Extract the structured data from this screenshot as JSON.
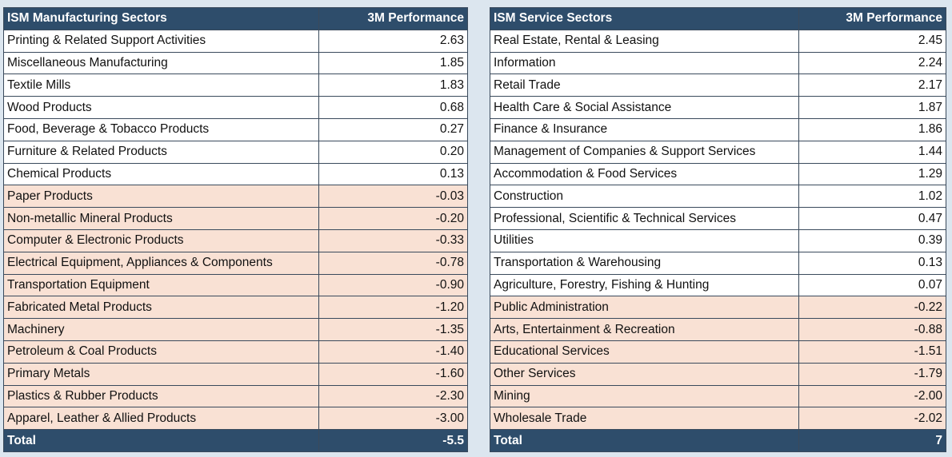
{
  "manufacturing": {
    "header": {
      "sector": "ISM Manufacturing Sectors",
      "performance": "3M Performance"
    },
    "rows": [
      {
        "name": "Printing & Related Support Activities",
        "value": "2.63",
        "sign": "pos"
      },
      {
        "name": "Miscellaneous Manufacturing",
        "value": "1.85",
        "sign": "pos"
      },
      {
        "name": "Textile Mills",
        "value": "1.83",
        "sign": "pos"
      },
      {
        "name": "Wood Products",
        "value": "0.68",
        "sign": "pos"
      },
      {
        "name": "Food, Beverage & Tobacco Products",
        "value": "0.27",
        "sign": "pos"
      },
      {
        "name": "Furniture & Related Products",
        "value": "0.20",
        "sign": "pos"
      },
      {
        "name": "Chemical Products",
        "value": "0.13",
        "sign": "pos"
      },
      {
        "name": "Paper Products",
        "value": "-0.03",
        "sign": "neg"
      },
      {
        "name": "Non-metallic Mineral Products",
        "value": "-0.20",
        "sign": "neg"
      },
      {
        "name": "Computer & Electronic Products",
        "value": "-0.33",
        "sign": "neg"
      },
      {
        "name": "Electrical Equipment, Appliances & Components",
        "value": "-0.78",
        "sign": "neg"
      },
      {
        "name": "Transportation Equipment",
        "value": "-0.90",
        "sign": "neg"
      },
      {
        "name": "Fabricated Metal Products",
        "value": "-1.20",
        "sign": "neg"
      },
      {
        "name": "Machinery",
        "value": "-1.35",
        "sign": "neg"
      },
      {
        "name": "Petroleum & Coal Products",
        "value": "-1.40",
        "sign": "neg"
      },
      {
        "name": "Primary Metals",
        "value": "-1.60",
        "sign": "neg"
      },
      {
        "name": "Plastics & Rubber Products",
        "value": "-2.30",
        "sign": "neg"
      },
      {
        "name": "Apparel, Leather & Allied Products",
        "value": "-3.00",
        "sign": "neg"
      }
    ],
    "total": {
      "label": "Total",
      "value": "-5.5"
    }
  },
  "services": {
    "header": {
      "sector": "ISM Service Sectors",
      "performance": "3M Performance"
    },
    "rows": [
      {
        "name": "Real Estate, Rental & Leasing",
        "value": "2.45",
        "sign": "pos"
      },
      {
        "name": "Information",
        "value": "2.24",
        "sign": "pos"
      },
      {
        "name": "Retail Trade",
        "value": "2.17",
        "sign": "pos"
      },
      {
        "name": "Health Care & Social Assistance",
        "value": "1.87",
        "sign": "pos"
      },
      {
        "name": "Finance & Insurance",
        "value": "1.86",
        "sign": "pos"
      },
      {
        "name": "Management of Companies & Support Services",
        "value": "1.44",
        "sign": "pos"
      },
      {
        "name": "Accommodation & Food Services",
        "value": "1.29",
        "sign": "pos"
      },
      {
        "name": "Construction",
        "value": "1.02",
        "sign": "pos"
      },
      {
        "name": "Professional, Scientific & Technical Services",
        "value": "0.47",
        "sign": "pos"
      },
      {
        "name": "Utilities",
        "value": "0.39",
        "sign": "pos"
      },
      {
        "name": "Transportation & Warehousing",
        "value": "0.13",
        "sign": "pos"
      },
      {
        "name": "Agriculture, Forestry, Fishing & Hunting",
        "value": "0.07",
        "sign": "pos"
      },
      {
        "name": "Public Administration",
        "value": "-0.22",
        "sign": "neg"
      },
      {
        "name": "Arts, Entertainment & Recreation",
        "value": "-0.88",
        "sign": "neg"
      },
      {
        "name": "Educational Services",
        "value": "-1.51",
        "sign": "neg"
      },
      {
        "name": "Other Services",
        "value": "-1.79",
        "sign": "neg"
      },
      {
        "name": "Mining",
        "value": "-2.00",
        "sign": "neg"
      },
      {
        "name": "Wholesale Trade",
        "value": "-2.02",
        "sign": "neg"
      }
    ],
    "total": {
      "label": "Total",
      "value": "7"
    }
  },
  "colors": {
    "header_bg": "#2e4d6b",
    "positive_row_bg": "#ffffff",
    "negative_row_bg": "#f9e1d4",
    "page_bg": "#dce6ef"
  }
}
